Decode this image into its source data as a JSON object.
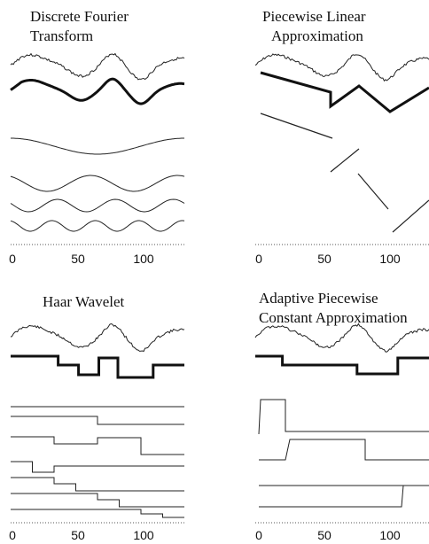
{
  "panels": [
    {
      "id": "dft",
      "title_lines": [
        "Discrete Fourier",
        "Transform"
      ],
      "approximation_label": "",
      "components": "4 sinusoidal basis functions"
    },
    {
      "id": "pla",
      "title_lines": [
        "Piecewise Linear",
        "Approximation"
      ],
      "components": "4 line segments"
    },
    {
      "id": "haar",
      "title_lines": [
        "Haar Wavelet"
      ],
      "components": "8 Haar basis functions"
    },
    {
      "id": "apca",
      "title_lines": [
        "Adaptive Piecewise",
        "Constant Approximation"
      ],
      "components": "4 constant segments"
    }
  ],
  "x_axis": {
    "ticks": [
      "0",
      "50",
      "100"
    ],
    "range": [
      0,
      128
    ]
  }
}
